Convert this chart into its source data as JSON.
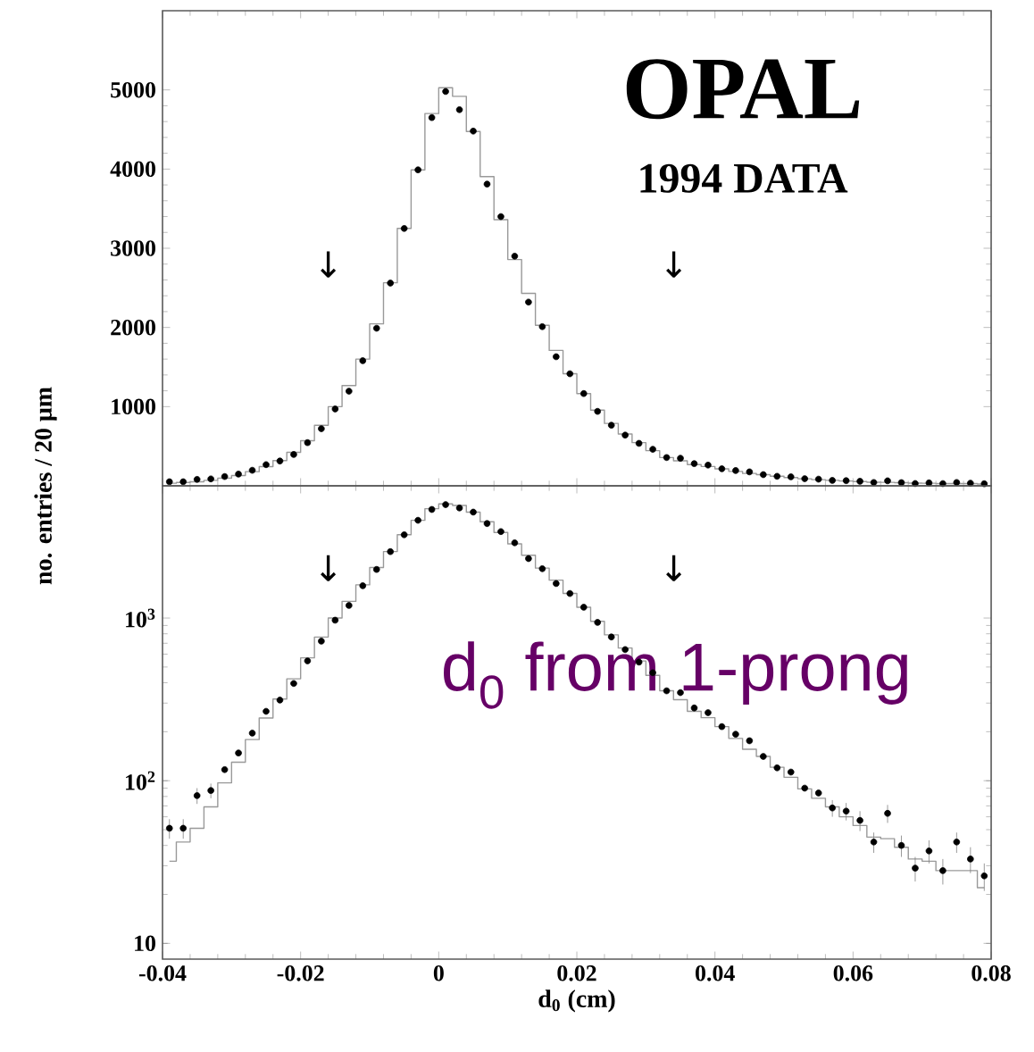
{
  "chart_data": [
    {
      "type": "scatter",
      "marker": "circle",
      "xlim": [
        -0.04,
        0.08
      ],
      "xticks": [
        -0.04,
        -0.02,
        0,
        0.02,
        0.04,
        0.06,
        0.08
      ],
      "ylim": [
        0,
        6000
      ],
      "yticks": [
        1000,
        2000,
        3000,
        4000,
        5000
      ],
      "tick_labels": "y",
      "ylabel": "no. entries / 20 μm",
      "x": [
        -0.039,
        -0.037,
        -0.035,
        -0.033,
        -0.031,
        -0.029,
        -0.027,
        -0.025,
        -0.023,
        -0.021,
        -0.019,
        -0.017,
        -0.015,
        -0.013,
        -0.011,
        -0.009,
        -0.007,
        -0.005,
        -0.003,
        -0.001,
        0.001,
        0.003,
        0.005,
        0.007,
        0.009,
        0.011,
        0.013,
        0.015,
        0.017,
        0.019,
        0.021,
        0.023,
        0.025,
        0.027,
        0.029,
        0.031,
        0.033,
        0.035,
        0.037,
        0.039,
        0.041,
        0.043,
        0.045,
        0.047,
        0.049,
        0.051,
        0.053,
        0.055,
        0.057,
        0.059,
        0.061,
        0.063,
        0.065,
        0.067,
        0.069,
        0.071,
        0.073,
        0.075,
        0.077,
        0.079
      ],
      "series": [
        {
          "type": "step",
          "marker": "none",
          "color": "#999999",
          "values": [
            32,
            42,
            51,
            69,
            97,
            130,
            179,
            243,
            318,
            423,
            569,
            764,
            1000,
            1266,
            1600,
            2045,
            2564,
            3251,
            3989,
            4701,
            5028,
            4919,
            4475,
            3905,
            3360,
            2858,
            2430,
            2028,
            1710,
            1416,
            1165,
            955,
            788,
            654,
            545,
            444,
            357,
            315,
            267,
            244,
            215,
            182,
            156,
            141,
            121,
            105,
            89,
            78,
            69,
            60,
            53,
            45,
            44,
            39,
            33,
            32,
            28,
            28,
            28,
            22
          ]
        },
        {
          "color": "#000000",
          "values": [
            51,
            51,
            81,
            87,
            117,
            148,
            196,
            267,
            313,
            396,
            545,
            721,
            970,
            1195,
            1580,
            1990,
            2560,
            3250,
            3990,
            4650,
            4980,
            4750,
            4480,
            3810,
            3400,
            2900,
            2320,
            2010,
            1630,
            1415,
            1165,
            940,
            765,
            640,
            536,
            461,
            357,
            348,
            280,
            262,
            215,
            193,
            176,
            141,
            120,
            113,
            90,
            84,
            68,
            65,
            57,
            42,
            63,
            40,
            29,
            37,
            28,
            42,
            33,
            26
          ]
        }
      ],
      "annotations": [
        "OPAL",
        "1994 DATA",
        "↓",
        "↓"
      ]
    },
    {
      "type": "scatter",
      "marker": "circle",
      "log": "y",
      "xlim": [
        -0.04,
        0.08
      ],
      "xticks": [
        -0.04,
        -0.02,
        0,
        0.02,
        0.04,
        0.06,
        0.08
      ],
      "ylim": [
        8,
        6500
      ],
      "yticks": [
        10,
        {
          "value": 100,
          "label": "10$^{2}$"
        },
        {
          "value": 1000,
          "label": "10$^{3}$"
        }
      ],
      "xlabel": "d$_{0}$ (cm)",
      "x": [
        -0.039,
        -0.037,
        -0.035,
        -0.033,
        -0.031,
        -0.029,
        -0.027,
        -0.025,
        -0.023,
        -0.021,
        -0.019,
        -0.017,
        -0.015,
        -0.013,
        -0.011,
        -0.009,
        -0.007,
        -0.005,
        -0.003,
        -0.001,
        0.001,
        0.003,
        0.005,
        0.007,
        0.009,
        0.011,
        0.013,
        0.015,
        0.017,
        0.019,
        0.021,
        0.023,
        0.025,
        0.027,
        0.029,
        0.031,
        0.033,
        0.035,
        0.037,
        0.039,
        0.041,
        0.043,
        0.045,
        0.047,
        0.049,
        0.051,
        0.053,
        0.055,
        0.057,
        0.059,
        0.061,
        0.063,
        0.065,
        0.067,
        0.069,
        0.071,
        0.073,
        0.075,
        0.077,
        0.079
      ],
      "series": [
        {
          "type": "step",
          "marker": "none",
          "color": "#999999",
          "values": [
            32,
            42,
            51,
            69,
            97,
            130,
            179,
            243,
            318,
            423,
            569,
            764,
            1000,
            1266,
            1600,
            2045,
            2564,
            3251,
            3989,
            4701,
            5028,
            4919,
            4475,
            3905,
            3360,
            2858,
            2430,
            2028,
            1710,
            1416,
            1165,
            955,
            788,
            654,
            545,
            444,
            357,
            315,
            267,
            244,
            215,
            182,
            156,
            141,
            121,
            105,
            89,
            78,
            69,
            60,
            53,
            45,
            44,
            39,
            33,
            32,
            28,
            28,
            28,
            22
          ]
        },
        {
          "color": "#000000",
          "values": [
            51,
            51,
            81,
            87,
            117,
            148,
            196,
            267,
            313,
            396,
            545,
            721,
            970,
            1195,
            1580,
            1990,
            2560,
            3250,
            3990,
            4650,
            4980,
            4750,
            4480,
            3810,
            3400,
            2900,
            2320,
            2010,
            1630,
            1415,
            1165,
            940,
            765,
            640,
            536,
            461,
            357,
            348,
            280,
            262,
            215,
            193,
            176,
            141,
            120,
            113,
            90,
            84,
            68,
            65,
            57,
            42,
            63,
            40,
            29,
            37,
            28,
            42,
            33,
            26
          ],
          "errors": [
            7,
            7,
            9,
            9,
            null,
            null,
            null,
            null,
            null,
            null,
            null,
            null,
            null,
            null,
            null,
            null,
            null,
            null,
            null,
            null,
            null,
            null,
            null,
            null,
            null,
            null,
            null,
            null,
            null,
            null,
            null,
            null,
            null,
            null,
            null,
            null,
            null,
            null,
            null,
            null,
            null,
            null,
            null,
            null,
            null,
            null,
            null,
            null,
            8,
            8,
            8,
            6,
            8,
            6,
            5,
            6,
            5,
            6,
            6,
            5
          ]
        }
      ],
      "annotations": [
        "↓",
        "↓",
        "d$_{0}$ from 1-prong"
      ]
    }
  ]
}
